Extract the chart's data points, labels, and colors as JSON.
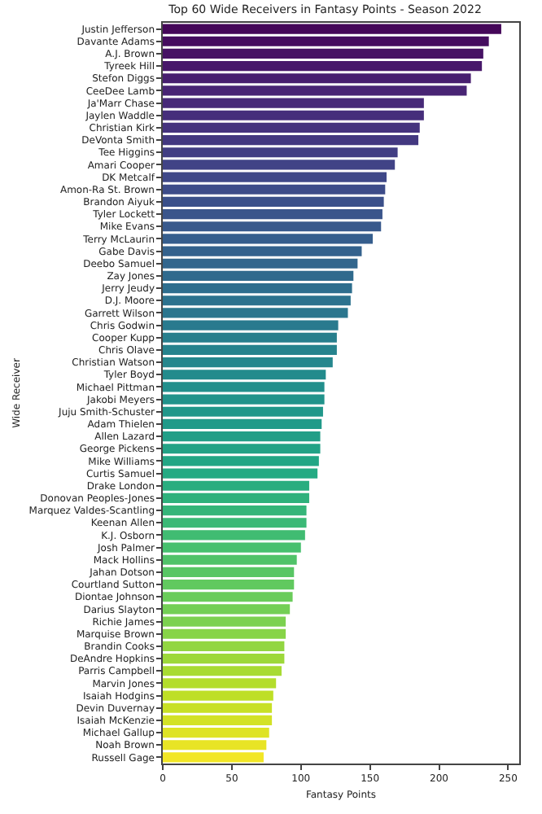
{
  "chart_data": {
    "type": "bar",
    "orientation": "horizontal",
    "title": "Top 60 Wide Receivers in Fantasy Points - Season 2022",
    "xlabel": "Fantasy Points",
    "ylabel": "Wide Receiver",
    "categories": [
      "Justin Jefferson",
      "Davante Adams",
      "A.J. Brown",
      "Tyreek Hill",
      "Stefon Diggs",
      "CeeDee Lamb",
      "Ja'Marr Chase",
      "Jaylen Waddle",
      "Christian Kirk",
      "DeVonta Smith",
      "Tee Higgins",
      "Amari Cooper",
      "DK Metcalf",
      "Amon-Ra St. Brown",
      "Brandon Aiyuk",
      "Tyler Lockett",
      "Mike Evans",
      "Terry McLaurin",
      "Gabe Davis",
      "Deebo Samuel",
      "Zay Jones",
      "Jerry Jeudy",
      "D.J. Moore",
      "Garrett Wilson",
      "Chris Godwin",
      "Cooper Kupp",
      "Chris Olave",
      "Christian Watson",
      "Tyler Boyd",
      "Michael Pittman",
      "Jakobi Meyers",
      "Juju Smith-Schuster",
      "Adam Thielen",
      "Allen Lazard",
      "George Pickens",
      "Mike Williams",
      "Curtis Samuel",
      "Drake London",
      "Donovan Peoples-Jones",
      "Marquez Valdes-Scantling",
      "Keenan Allen",
      "K.J. Osborn",
      "Josh Palmer",
      "Mack Hollins",
      "Jahan Dotson",
      "Courtland Sutton",
      "Diontae Johnson",
      "Darius Slayton",
      "Richie James",
      "Marquise Brown",
      "Brandin Cooks",
      "DeAndre Hopkins",
      "Parris Campbell",
      "Marvin Jones",
      "Isaiah Hodgins",
      "Devin Duvernay",
      "Isaiah McKenzie",
      "Michael Gallup",
      "Noah Brown",
      "Russell Gage"
    ],
    "values": [
      245,
      236,
      232,
      231,
      223,
      220,
      189,
      189,
      186,
      185,
      170,
      168,
      162,
      161,
      160,
      159,
      158,
      152,
      144,
      141,
      138,
      137,
      136,
      134,
      127,
      126,
      126,
      123,
      118,
      117,
      117,
      116,
      115,
      114,
      114,
      113,
      112,
      106,
      106,
      104,
      104,
      103,
      100,
      97,
      95,
      95,
      94,
      92,
      89,
      89,
      88,
      88,
      86,
      82,
      80,
      79,
      79,
      77,
      75,
      73
    ],
    "colors": [
      "#450759",
      "#450c5f",
      "#461264",
      "#47186a",
      "#471e6f",
      "#482474",
      "#472978",
      "#462e7b",
      "#45337e",
      "#433880",
      "#423e83",
      "#414386",
      "#3f4888",
      "#3d4c89",
      "#3b508a",
      "#3a558b",
      "#38598c",
      "#365e8d",
      "#34628d",
      "#32668d",
      "#306a8d",
      "#2e6e8e",
      "#2c728e",
      "#2b768e",
      "#297a8e",
      "#287f8d",
      "#26838d",
      "#25878d",
      "#238b8c",
      "#228f8c",
      "#21938b",
      "#21978a",
      "#219a89",
      "#229e87",
      "#22a286",
      "#22a685",
      "#24aa83",
      "#2aad7f",
      "#2fb17c",
      "#35b579",
      "#3bb976",
      "#40bc72",
      "#47c06e",
      "#50c369",
      "#58c664",
      "#61c95f",
      "#6acc5a",
      "#73cf55",
      "#7cd150",
      "#87d448",
      "#92d641",
      "#9dd83a",
      "#a8db33",
      "#b3dd2c",
      "#bedf26",
      "#c8e026",
      "#d3e226",
      "#dee325",
      "#e8e425",
      "#f2e625"
    ],
    "xlim": [
      0,
      258
    ],
    "xticks": [
      0,
      50,
      100,
      150,
      200,
      250
    ],
    "grid": false
  }
}
